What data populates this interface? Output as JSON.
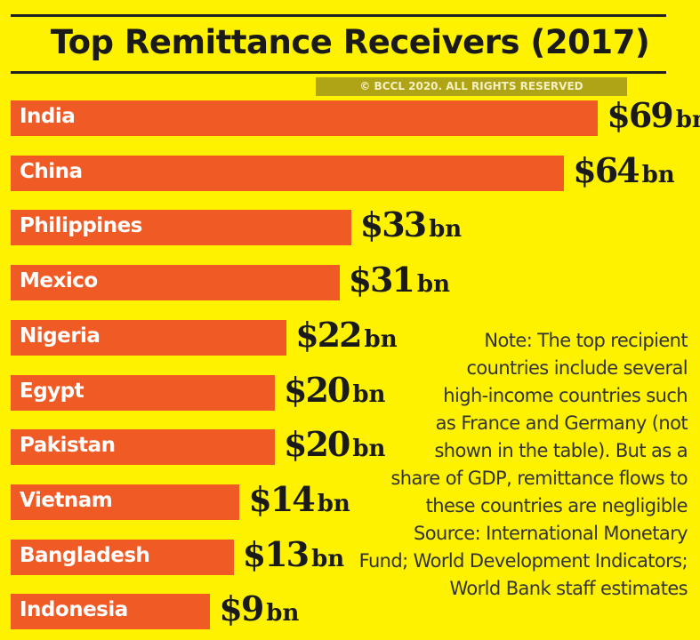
{
  "chart_data": {
    "type": "bar",
    "orientation": "horizontal",
    "title": "Top Remittance Receivers (2017)",
    "categories": [
      "India",
      "China",
      "Philippines",
      "Mexico",
      "Nigeria",
      "Egypt",
      "Pakistan",
      "Vietnam",
      "Bangladesh",
      "Indonesia"
    ],
    "values": [
      69,
      64,
      33,
      31,
      22,
      20,
      20,
      14,
      13,
      9
    ],
    "value_prefix": "$",
    "value_unit": "bn",
    "colors": {
      "background": "#fef200",
      "bar": "#f05a24",
      "bar_label": "#ffffff",
      "text": "#1a1a1a"
    }
  },
  "note": [
    "Note: The top recipient",
    "countries include several",
    "high-income countries such",
    "as France and Germany (not",
    "shown in the table). But as a",
    "share of GDP, remittance flows to",
    "these countries are negligible",
    "Source: International Monetary",
    "Fund; World Development Indicators;",
    "World Bank staff estimates"
  ],
  "watermark": "© BCCL 2020. ALL RIGHTS RESERVED"
}
